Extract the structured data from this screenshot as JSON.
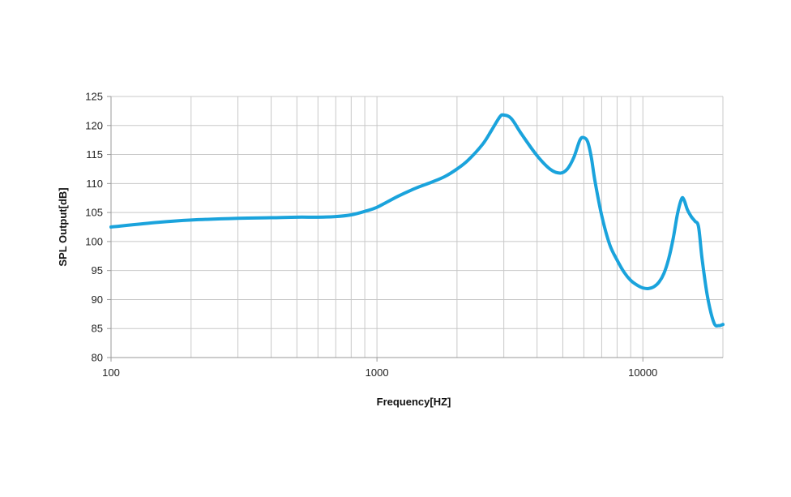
{
  "chart_data": {
    "type": "line",
    "title": "",
    "xlabel": "Frequency[HZ]",
    "ylabel": "SPL Output[dB]",
    "x_scale": "log",
    "xlim": [
      100,
      20000
    ],
    "ylim": [
      80,
      125
    ],
    "x_tick_labels": [
      {
        "value": 100,
        "label": "100"
      },
      {
        "value": 1000,
        "label": "1000"
      },
      {
        "value": 10000,
        "label": "10000"
      }
    ],
    "y_ticks": [
      80,
      85,
      90,
      95,
      100,
      105,
      110,
      115,
      120,
      125
    ],
    "x_gridlines": [
      100,
      200,
      300,
      400,
      500,
      600,
      700,
      800,
      900,
      1000,
      2000,
      3000,
      4000,
      5000,
      6000,
      7000,
      8000,
      9000,
      10000,
      20000
    ],
    "grid": true,
    "legend": "none",
    "colors": {
      "line": "#1aa3dc",
      "grid": "#c8c8c8",
      "axis": "#9a9a9a"
    },
    "series": [
      {
        "x": [
          100,
          150,
          200,
          300,
          400,
          500,
          600,
          700,
          800,
          900,
          1000,
          1200,
          1400,
          1600,
          1800,
          2000,
          2200,
          2500,
          2700,
          2900,
          3000,
          3200,
          3500,
          4000,
          4500,
          4900,
          5200,
          5500,
          5800,
          6000,
          6200,
          6400,
          6600,
          7000,
          7500,
          8000,
          8500,
          9000,
          9500,
          10000,
          10500,
          11000,
          11500,
          12000,
          12500,
          13000,
          13500,
          14000,
          14300,
          14700,
          15200,
          15700,
          16200,
          16700,
          17500,
          18500,
          19300,
          20000
        ],
        "y": [
          102.5,
          103.3,
          103.7,
          104.0,
          104.1,
          104.2,
          104.2,
          104.3,
          104.6,
          105.2,
          105.9,
          107.8,
          109.2,
          110.2,
          111.2,
          112.5,
          114.0,
          116.8,
          119.2,
          121.5,
          121.8,
          121.2,
          118.5,
          114.8,
          112.4,
          111.8,
          112.5,
          114.5,
          117.5,
          117.9,
          117.2,
          114.5,
          110.5,
          104.5,
          99.5,
          96.8,
          94.7,
          93.3,
          92.5,
          92.0,
          91.9,
          92.2,
          93.0,
          94.5,
          97.0,
          100.5,
          104.8,
          107.4,
          107.1,
          105.5,
          104.3,
          103.5,
          102.5,
          97.0,
          90.5,
          86.0,
          85.5,
          85.7
        ]
      }
    ]
  }
}
